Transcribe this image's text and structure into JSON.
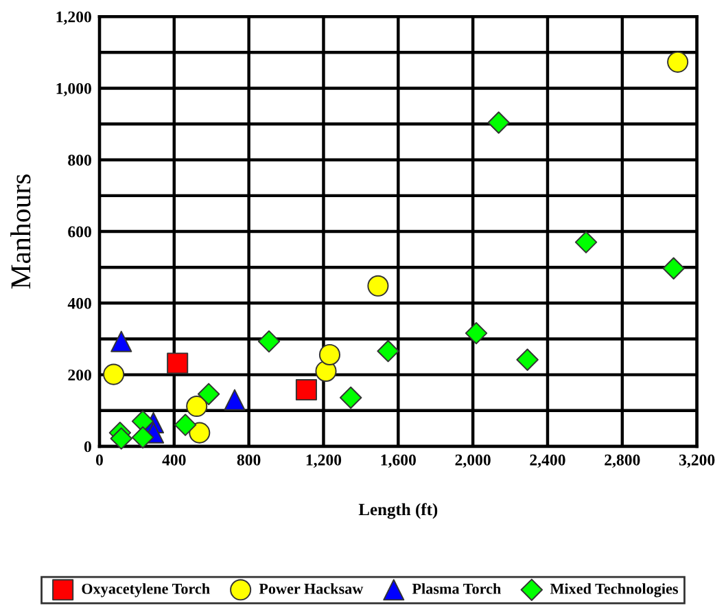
{
  "chart_data": {
    "type": "scatter",
    "xlabel": "Length (ft)",
    "ylabel": "Manhours",
    "xlim": [
      0,
      3200
    ],
    "xticks": [
      0,
      {
        "value": 400,
        "label": "400"
      },
      {
        "value": 800,
        "label": "800"
      },
      {
        "value": 1200,
        "label": "1,200"
      },
      {
        "value": 1600,
        "label": "1,600"
      },
      {
        "value": 2000,
        "label": "2,000"
      },
      {
        "value": 2400,
        "label": "2,400"
      },
      {
        "value": 2800,
        "label": "2,800"
      },
      {
        "value": 3200,
        "label": "3,200"
      }
    ],
    "ylim": [
      0,
      1200
    ],
    "yticks": [
      0,
      {
        "value": 100,
        "label": null
      },
      200,
      {
        "value": 300,
        "label": null
      },
      400,
      {
        "value": 500,
        "label": null
      },
      600,
      {
        "value": 700,
        "label": null
      },
      800,
      {
        "value": 900,
        "label": null
      },
      {
        "value": 1000,
        "label": "1,000"
      },
      {
        "value": 1100,
        "label": null
      },
      {
        "value": 1200,
        "label": "1,200"
      }
    ],
    "grid": true,
    "legend": "bottom",
    "series": [
      {
        "name": "Oxyacetylene Torch",
        "color": "#ff0000",
        "marker": "square",
        "x": [
          418,
          1108
        ],
        "values": [
          232,
          158
        ]
      },
      {
        "name": "Power Hacksaw",
        "color": "#ffff00",
        "marker": "circle",
        "x": [
          76,
          521,
          536,
          1213,
          1233,
          1492,
          3097
        ],
        "values": [
          201,
          112,
          38,
          210,
          256,
          448,
          1073
        ]
      },
      {
        "name": "Plasma Torch",
        "color": "#0000ff",
        "marker": "triangle",
        "x": [
          117,
          289,
          289,
          724
        ],
        "values": [
          293,
          66,
          38,
          130
        ]
      },
      {
        "name": "Mixed Technologies",
        "color": "#00ff00",
        "marker": "diamond",
        "x": [
          110,
          117,
          232,
          232,
          460,
          585,
          908,
          1346,
          1546,
          2018,
          2138,
          2292,
          2606,
          3075
        ],
        "values": [
          38,
          22,
          70,
          25,
          60,
          146,
          293,
          136,
          266,
          316,
          904,
          242,
          570,
          497
        ]
      }
    ]
  }
}
